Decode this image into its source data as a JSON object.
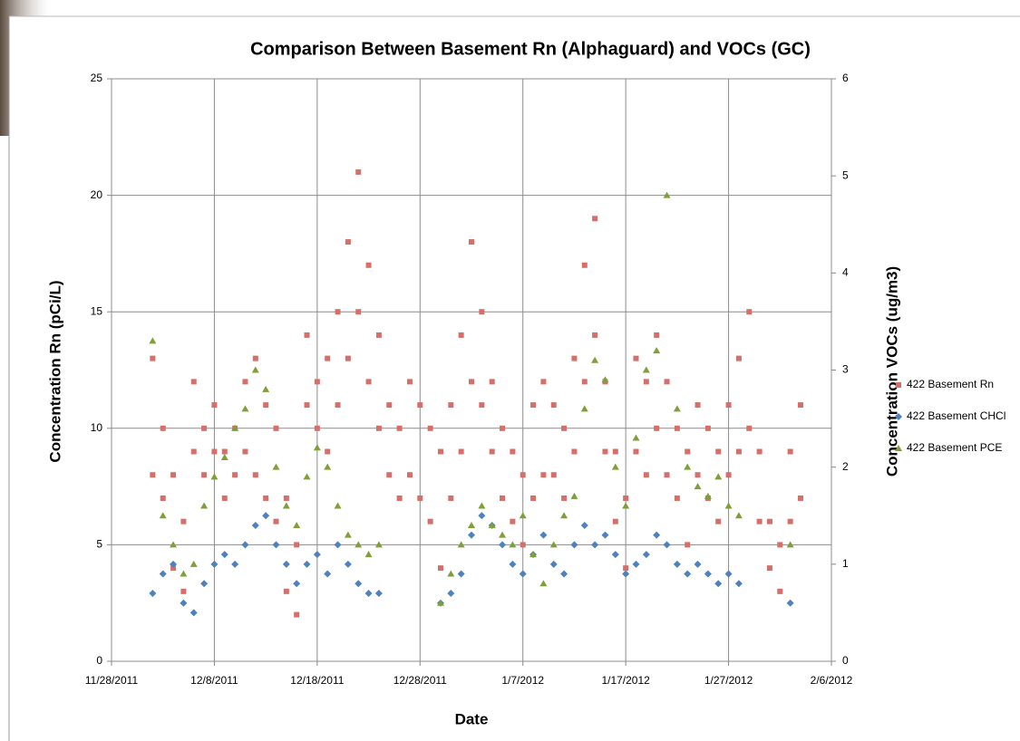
{
  "chart_data": {
    "type": "scatter",
    "title": "Comparison Between Basement Rn (Alphaguard) and VOCs (GC)",
    "x_label": "Date",
    "y_label": "Concentration  Rn (pCi/L)",
    "y2_label": "Concentration  VOCs (ug/m3)",
    "xlim": [
      "11/28/2011",
      "2/6/2012"
    ],
    "xticks": [
      "11/28/2011",
      "12/8/2011",
      "12/18/2011",
      "12/28/2011",
      "1/7/2012",
      "1/17/2012",
      "1/27/2012",
      "2/6/2012"
    ],
    "ylim": [
      0,
      25
    ],
    "yticks": [
      0,
      5,
      10,
      15,
      20,
      25
    ],
    "y2lim": [
      0,
      6
    ],
    "y2ticks": [
      0,
      1,
      2,
      3,
      4,
      5,
      6
    ],
    "grid": true,
    "legend": "right",
    "series": [
      {
        "name": "422 Basement Rn",
        "color": "#d46f6b",
        "marker": "square",
        "x": [
          "12/2/2011",
          "12/2/2011",
          "12/3/2011",
          "12/3/2011",
          "12/4/2011",
          "12/4/2011",
          "12/5/2011",
          "12/5/2011",
          "12/6/2011",
          "12/6/2011",
          "12/7/2011",
          "12/7/2011",
          "12/8/2011",
          "12/8/2011",
          "12/9/2011",
          "12/9/2011",
          "12/10/2011",
          "12/10/2011",
          "12/11/2011",
          "12/11/2011",
          "12/12/2011",
          "12/12/2011",
          "12/13/2011",
          "12/13/2011",
          "12/14/2011",
          "12/14/2011",
          "12/15/2011",
          "12/15/2011",
          "12/16/2011",
          "12/16/2011",
          "12/17/2011",
          "12/17/2011",
          "12/18/2011",
          "12/18/2011",
          "12/19/2011",
          "12/19/2011",
          "12/20/2011",
          "12/20/2011",
          "12/21/2011",
          "12/21/2011",
          "12/22/2011",
          "12/22/2011",
          "12/23/2011",
          "12/23/2011",
          "12/24/2011",
          "12/24/2011",
          "12/25/2011",
          "12/25/2011",
          "12/26/2011",
          "12/26/2011",
          "12/27/2011",
          "12/27/2011",
          "12/28/2011",
          "12/28/2011",
          "12/29/2011",
          "12/29/2011",
          "12/30/2011",
          "12/30/2011",
          "12/31/2011",
          "12/31/2011",
          "1/1/2012",
          "1/1/2012",
          "1/2/2012",
          "1/2/2012",
          "1/3/2012",
          "1/3/2012",
          "1/4/2012",
          "1/4/2012",
          "1/5/2012",
          "1/5/2012",
          "1/6/2012",
          "1/6/2012",
          "1/7/2012",
          "1/7/2012",
          "1/8/2012",
          "1/8/2012",
          "1/9/2012",
          "1/9/2012",
          "1/10/2012",
          "1/10/2012",
          "1/11/2012",
          "1/11/2012",
          "1/12/2012",
          "1/12/2012",
          "1/13/2012",
          "1/13/2012",
          "1/14/2012",
          "1/14/2012",
          "1/15/2012",
          "1/15/2012",
          "1/16/2012",
          "1/16/2012",
          "1/17/2012",
          "1/17/2012",
          "1/18/2012",
          "1/18/2012",
          "1/19/2012",
          "1/19/2012",
          "1/20/2012",
          "1/20/2012",
          "1/21/2012",
          "1/21/2012",
          "1/22/2012",
          "1/22/2012",
          "1/23/2012",
          "1/23/2012",
          "1/24/2012",
          "1/24/2012",
          "1/25/2012",
          "1/25/2012",
          "1/26/2012",
          "1/26/2012",
          "1/27/2012",
          "1/27/2012",
          "1/28/2012",
          "1/28/2012",
          "1/29/2012",
          "1/29/2012",
          "1/30/2012",
          "1/30/2012",
          "1/31/2012",
          "1/31/2012",
          "2/1/2012",
          "2/1/2012",
          "2/2/2012",
          "2/2/2012",
          "2/3/2012",
          "2/3/2012"
        ],
        "values": [
          13,
          8,
          10,
          7,
          8,
          4,
          6,
          3,
          9,
          12,
          10,
          8,
          11,
          9,
          9,
          7,
          10,
          8,
          12,
          9,
          13,
          8,
          11,
          7,
          10,
          6,
          7,
          3,
          5,
          2,
          14,
          11,
          12,
          10,
          13,
          9,
          15,
          11,
          18,
          13,
          21,
          15,
          17,
          12,
          14,
          10,
          11,
          8,
          10,
          7,
          12,
          8,
          11,
          7,
          10,
          6,
          9,
          4,
          11,
          7,
          14,
          9,
          18,
          12,
          15,
          11,
          12,
          9,
          10,
          7,
          9,
          6,
          8,
          5,
          11,
          7,
          12,
          8,
          11,
          8,
          10,
          7,
          13,
          9,
          17,
          12,
          19,
          14,
          12,
          9,
          9,
          6,
          7,
          4,
          13,
          9,
          12,
          8,
          14,
          10,
          12,
          8,
          10,
          7,
          9,
          5,
          11,
          8,
          10,
          7,
          9,
          6,
          11,
          8,
          13,
          9,
          15,
          10,
          9,
          6,
          6,
          4,
          5,
          3,
          9,
          6,
          11,
          7
        ]
      },
      {
        "name": "422 Basement CHCl",
        "color": "#4f81bd",
        "marker": "diamond",
        "axis": "y2",
        "x": [
          "12/2/2011",
          "12/3/2011",
          "12/4/2011",
          "12/5/2011",
          "12/6/2011",
          "12/7/2011",
          "12/8/2011",
          "12/9/2011",
          "12/10/2011",
          "12/11/2011",
          "12/12/2011",
          "12/13/2011",
          "12/14/2011",
          "12/15/2011",
          "12/16/2011",
          "12/17/2011",
          "12/18/2011",
          "12/19/2011",
          "12/20/2011",
          "12/21/2011",
          "12/22/2011",
          "12/23/2011",
          "12/24/2011",
          "12/30/2011",
          "12/31/2011",
          "1/1/2012",
          "1/2/2012",
          "1/3/2012",
          "1/4/2012",
          "1/5/2012",
          "1/6/2012",
          "1/7/2012",
          "1/8/2012",
          "1/9/2012",
          "1/10/2012",
          "1/11/2012",
          "1/12/2012",
          "1/13/2012",
          "1/14/2012",
          "1/15/2012",
          "1/16/2012",
          "1/17/2012",
          "1/18/2012",
          "1/19/2012",
          "1/20/2012",
          "1/21/2012",
          "1/22/2012",
          "1/23/2012",
          "1/24/2012",
          "1/25/2012",
          "1/26/2012",
          "1/27/2012",
          "1/28/2012",
          "2/2/2012"
        ],
        "values": [
          0.7,
          0.9,
          1.0,
          0.6,
          0.5,
          0.8,
          1.0,
          1.1,
          1.0,
          1.2,
          1.4,
          1.5,
          1.2,
          1.0,
          0.8,
          1.0,
          1.1,
          0.9,
          1.2,
          1.0,
          0.8,
          0.7,
          0.7,
          0.6,
          0.7,
          0.9,
          1.3,
          1.5,
          1.4,
          1.2,
          1.0,
          0.9,
          1.1,
          1.3,
          1.0,
          0.9,
          1.2,
          1.4,
          1.2,
          1.3,
          1.1,
          0.9,
          1.0,
          1.1,
          1.3,
          1.2,
          1.0,
          0.9,
          1.0,
          0.9,
          0.8,
          0.9,
          0.8,
          0.6
        ]
      },
      {
        "name": "422 Basement PCE",
        "color": "#7f9f3a",
        "marker": "triangle",
        "axis": "y2",
        "x": [
          "12/2/2011",
          "12/3/2011",
          "12/4/2011",
          "12/5/2011",
          "12/6/2011",
          "12/7/2011",
          "12/8/2011",
          "12/9/2011",
          "12/10/2011",
          "12/11/2011",
          "12/12/2011",
          "12/13/2011",
          "12/14/2011",
          "12/15/2011",
          "12/16/2011",
          "12/17/2011",
          "12/18/2011",
          "12/19/2011",
          "12/20/2011",
          "12/21/2011",
          "12/22/2011",
          "12/23/2011",
          "12/24/2011",
          "12/30/2011",
          "12/31/2011",
          "1/1/2012",
          "1/2/2012",
          "1/3/2012",
          "1/4/2012",
          "1/5/2012",
          "1/6/2012",
          "1/7/2012",
          "1/8/2012",
          "1/9/2012",
          "1/10/2012",
          "1/11/2012",
          "1/12/2012",
          "1/13/2012",
          "1/14/2012",
          "1/15/2012",
          "1/16/2012",
          "1/17/2012",
          "1/18/2012",
          "1/19/2012",
          "1/20/2012",
          "1/21/2012",
          "1/22/2012",
          "1/23/2012",
          "1/24/2012",
          "1/25/2012",
          "1/26/2012",
          "1/27/2012",
          "1/28/2012",
          "2/2/2012"
        ],
        "values": [
          3.3,
          1.5,
          1.2,
          0.9,
          1.0,
          1.6,
          1.9,
          2.1,
          2.4,
          2.6,
          3.0,
          2.8,
          2.0,
          1.6,
          1.4,
          1.9,
          2.2,
          2.0,
          1.6,
          1.3,
          1.2,
          1.1,
          1.2,
          0.6,
          0.9,
          1.2,
          1.4,
          1.6,
          1.4,
          1.3,
          1.2,
          1.5,
          1.1,
          0.8,
          1.2,
          1.5,
          1.7,
          2.6,
          3.1,
          2.9,
          2.0,
          1.6,
          2.3,
          3.0,
          3.2,
          4.8,
          2.6,
          2.0,
          1.8,
          1.7,
          1.9,
          1.6,
          1.5,
          1.2
        ]
      }
    ]
  }
}
